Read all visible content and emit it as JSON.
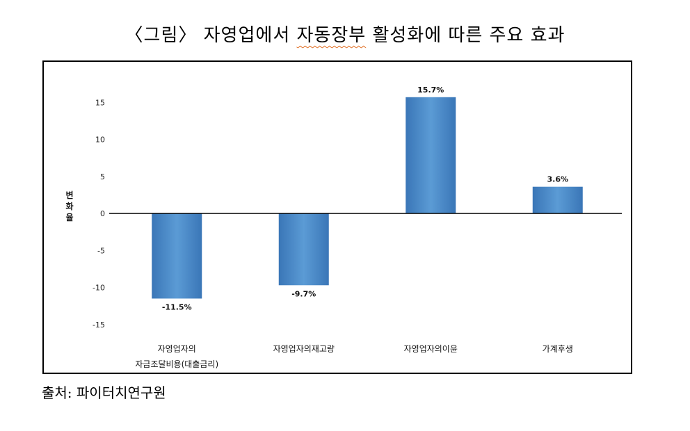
{
  "header": {
    "title_a": "〈그림〉 자영업에서 ",
    "title_b": "자동장부",
    "title_c": " 활성화에 따른 주요 효과"
  },
  "footer": {
    "source": "출처: 파이터치연구원"
  },
  "colors": {
    "bar": "#5b9bd5",
    "bar_dark": "#3a76b7",
    "axis": "#000000"
  },
  "chart_data": {
    "type": "bar",
    "ylabel": "변화율",
    "ylim": [
      -15,
      15
    ],
    "yticks": [
      15,
      10,
      5,
      0,
      -5,
      -10,
      -15
    ],
    "categories": [
      [
        "자영업자의",
        "자금조달비용(대출금리)"
      ],
      [
        "자영업자의재고량"
      ],
      [
        "자영업자의이윤"
      ],
      [
        "가계후생"
      ]
    ],
    "values": [
      -11.5,
      -9.7,
      15.7,
      3.6
    ],
    "data_labels": [
      "-11.5%",
      "-9.7%",
      "15.7%",
      "3.6%"
    ],
    "grid": false,
    "legend": "none"
  }
}
